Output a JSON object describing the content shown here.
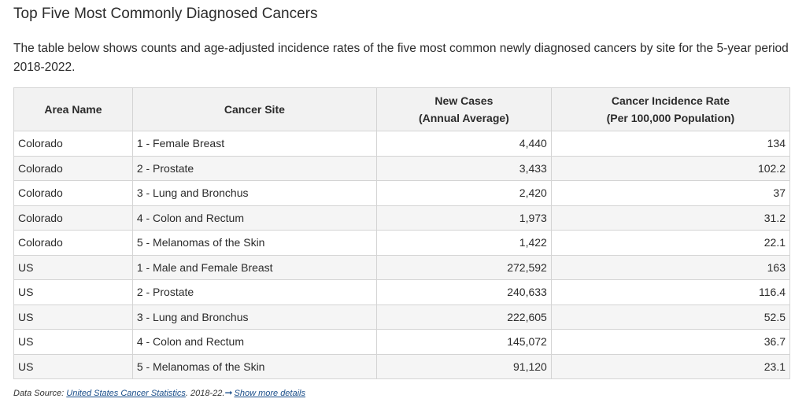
{
  "heading": "Top Five Most Commonly Diagnosed Cancers",
  "description": "The table below shows counts and age-adjusted incidence rates of the five most common newly diagnosed cancers by site for the 5-year period 2018-2022.",
  "table": {
    "headers": {
      "area": "Area Name",
      "site": "Cancer Site",
      "cases_line1": "New Cases",
      "cases_line2": "(Annual Average)",
      "rate_line1": "Cancer Incidence Rate",
      "rate_line2": "(Per 100,000 Population)"
    },
    "rows": [
      {
        "area": "Colorado",
        "site": "1 - Female Breast",
        "cases": "4,440",
        "rate": "134"
      },
      {
        "area": "Colorado",
        "site": "2 - Prostate",
        "cases": "3,433",
        "rate": "102.2"
      },
      {
        "area": "Colorado",
        "site": "3 - Lung and Bronchus",
        "cases": "2,420",
        "rate": "37"
      },
      {
        "area": "Colorado",
        "site": "4 - Colon and Rectum",
        "cases": "1,973",
        "rate": "31.2"
      },
      {
        "area": "Colorado",
        "site": "5 - Melanomas of the Skin",
        "cases": "1,422",
        "rate": "22.1"
      },
      {
        "area": "US",
        "site": "1 - Male and Female Breast",
        "cases": "272,592",
        "rate": "163"
      },
      {
        "area": "US",
        "site": "2 - Prostate",
        "cases": "240,633",
        "rate": "116.4"
      },
      {
        "area": "US",
        "site": "3 - Lung and Bronchus",
        "cases": "222,605",
        "rate": "52.5"
      },
      {
        "area": "US",
        "site": "4 - Colon and Rectum",
        "cases": "145,072",
        "rate": "36.7"
      },
      {
        "area": "US",
        "site": "5 - Melanomas of the Skin",
        "cases": "91,120",
        "rate": "23.1"
      }
    ]
  },
  "source": {
    "prefix": "Data Source: ",
    "link_text": "United States Cancer Statistics",
    "suffix": ". 2018-22.",
    "arrow_icon": "arrow-right-icon",
    "more_text": "Show more details"
  }
}
